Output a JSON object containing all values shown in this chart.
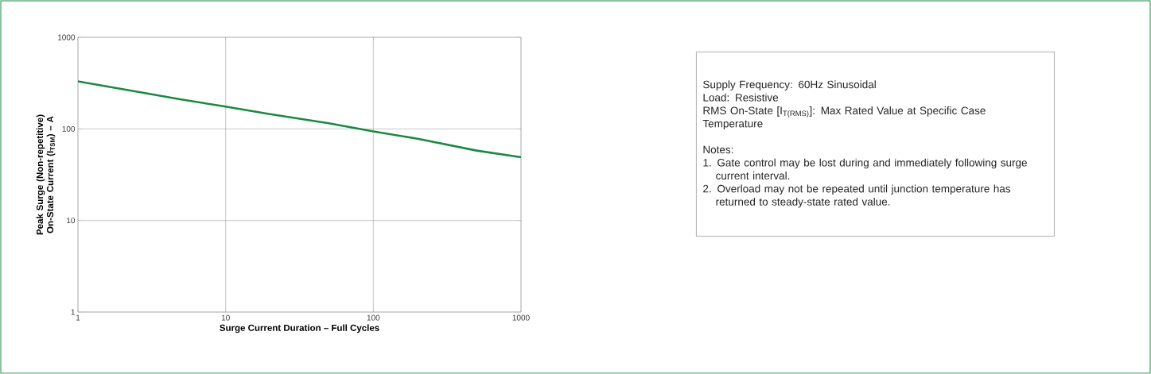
{
  "chart_data": {
    "type": "line",
    "xlabel": "Surge Current Duration – Full Cycles",
    "ylabel": "Peak Surge (Non-repetitive) On-State Current (I$_{TSM}$) – A",
    "log": "xy",
    "grid": true,
    "xlim": [
      1,
      1000
    ],
    "ylim": [
      1,
      1000
    ],
    "xticks": [
      1,
      10,
      100,
      1000
    ],
    "yticks": [
      1,
      10,
      100,
      1000
    ],
    "series": [
      {
        "color": "#1a8a40",
        "x": [
          1,
          2,
          5,
          10,
          20,
          50,
          100,
          200,
          500,
          1000
        ],
        "values": [
          330,
          272,
          210,
          175,
          145,
          115,
          94,
          78,
          58,
          49
        ]
      }
    ],
    "annotations": [
      "Supply Frequency: 60Hz Sinusoidal",
      "Load: Resistive",
      "RMS On-State [I$_{T(RMS)}$]: Max Rated Value at Specific Case Temperature",
      "Notes:",
      "1. Gate control may be lost during and immediately following surge current interval.",
      "2. Overload may not be repeated until junction temperature has returned to steady-state rated value."
    ]
  }
}
